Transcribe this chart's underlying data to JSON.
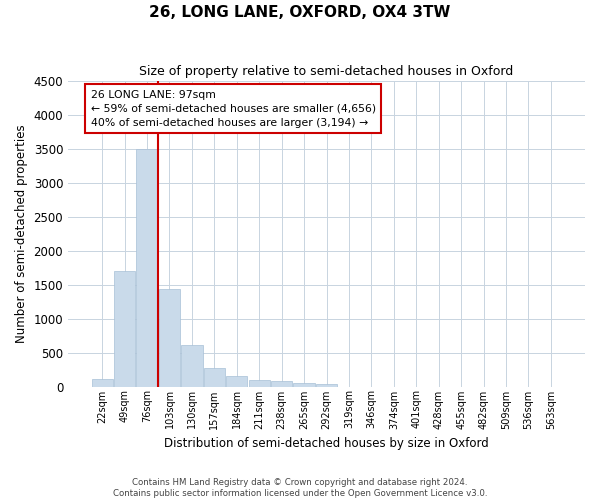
{
  "title": "26, LONG LANE, OXFORD, OX4 3TW",
  "subtitle": "Size of property relative to semi-detached houses in Oxford",
  "xlabel": "Distribution of semi-detached houses by size in Oxford",
  "ylabel": "Number of semi-detached properties",
  "bar_color": "#c9daea",
  "bar_edgecolor": "#a8c0d6",
  "categories": [
    "22sqm",
    "49sqm",
    "76sqm",
    "103sqm",
    "130sqm",
    "157sqm",
    "184sqm",
    "211sqm",
    "238sqm",
    "265sqm",
    "292sqm",
    "319sqm",
    "346sqm",
    "374sqm",
    "401sqm",
    "428sqm",
    "455sqm",
    "482sqm",
    "509sqm",
    "536sqm",
    "563sqm"
  ],
  "values": [
    110,
    1700,
    3500,
    1430,
    610,
    270,
    150,
    100,
    75,
    55,
    30,
    0,
    0,
    0,
    0,
    0,
    0,
    0,
    0,
    0,
    0
  ],
  "ylim": [
    0,
    4500
  ],
  "yticks": [
    0,
    500,
    1000,
    1500,
    2000,
    2500,
    3000,
    3500,
    4000,
    4500
  ],
  "red_line_color": "#cc0000",
  "annotation_box_edgecolor": "#cc0000",
  "annotation_text_line1": "26 LONG LANE: 97sqm",
  "annotation_text_line2": "← 59% of semi-detached houses are smaller (4,656)",
  "annotation_text_line3": "40% of semi-detached houses are larger (3,194) →",
  "footer_line1": "Contains HM Land Registry data © Crown copyright and database right 2024.",
  "footer_line2": "Contains public sector information licensed under the Open Government Licence v3.0.",
  "background_color": "#ffffff",
  "grid_color": "#c8d4e0"
}
